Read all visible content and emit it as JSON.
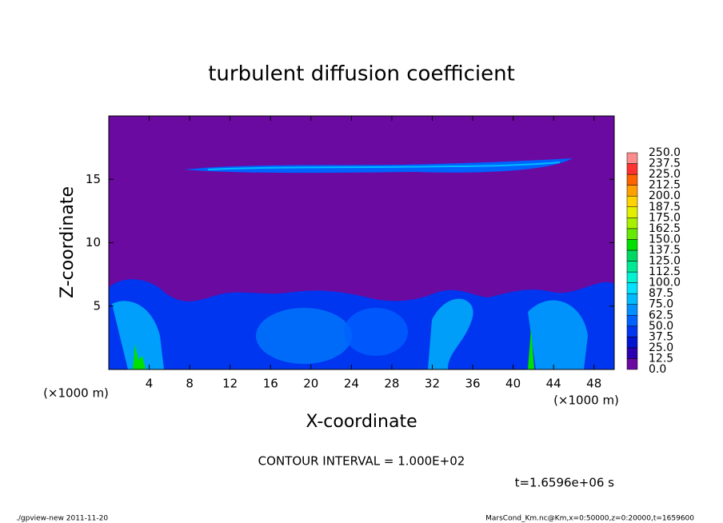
{
  "chart_data": {
    "type": "contour",
    "title": "turbulent diffusion coefficient",
    "xlabel": "X-coordinate",
    "ylabel": "Z-coordinate",
    "xlabel_unit": "(×1000 m)",
    "ylabel_unit": "(×1000 m)",
    "xlim": [
      0,
      50
    ],
    "xticks": [
      4,
      8,
      12,
      16,
      20,
      24,
      28,
      32,
      36,
      40,
      44,
      48
    ],
    "ylim": [
      0,
      20
    ],
    "yticks": [
      5,
      10,
      15
    ],
    "colorbar": {
      "ticks": [
        {
          "value": 0,
          "label": "0.0"
        },
        12.5,
        {
          "value": 25,
          "label": "25.0"
        },
        37.5,
        {
          "value": 50,
          "label": "50.0"
        },
        62.5,
        {
          "value": 75,
          "label": "75.0"
        },
        87.5,
        {
          "value": 100,
          "label": "100.0"
        },
        112.5,
        {
          "value": 125,
          "label": "125.0"
        },
        137.5,
        {
          "value": 150,
          "label": "150.0"
        },
        162.5,
        {
          "value": 175,
          "label": "175.0"
        },
        187.5,
        {
          "value": 200,
          "label": "200.0"
        },
        212.5,
        {
          "value": 225,
          "label": "225.0"
        },
        237.5,
        {
          "value": 250,
          "label": "250.0"
        }
      ],
      "colors": [
        "#6a0aa0",
        "#2a00b0",
        "#0014d2",
        "#0036f0",
        "#0062ff",
        "#0090ff",
        "#00baff",
        "#00e2ff",
        "#00f2d2",
        "#00ea96",
        "#00d864",
        "#00e000",
        "#66e800",
        "#a8f000",
        "#e2f000",
        "#ffd200",
        "#ffa000",
        "#ff6400",
        "#ff3232",
        "#ff8c8c"
      ]
    },
    "annotations": [
      "CONTOUR INTERVAL = 1.000E+02",
      "t=1.6596e+06 s"
    ],
    "footer_left": "./gpview-new   2011-11-20",
    "footer_right": "MarsCond_Km.nc@Km,x=0:50000,z=0:20000,t=1659600"
  }
}
